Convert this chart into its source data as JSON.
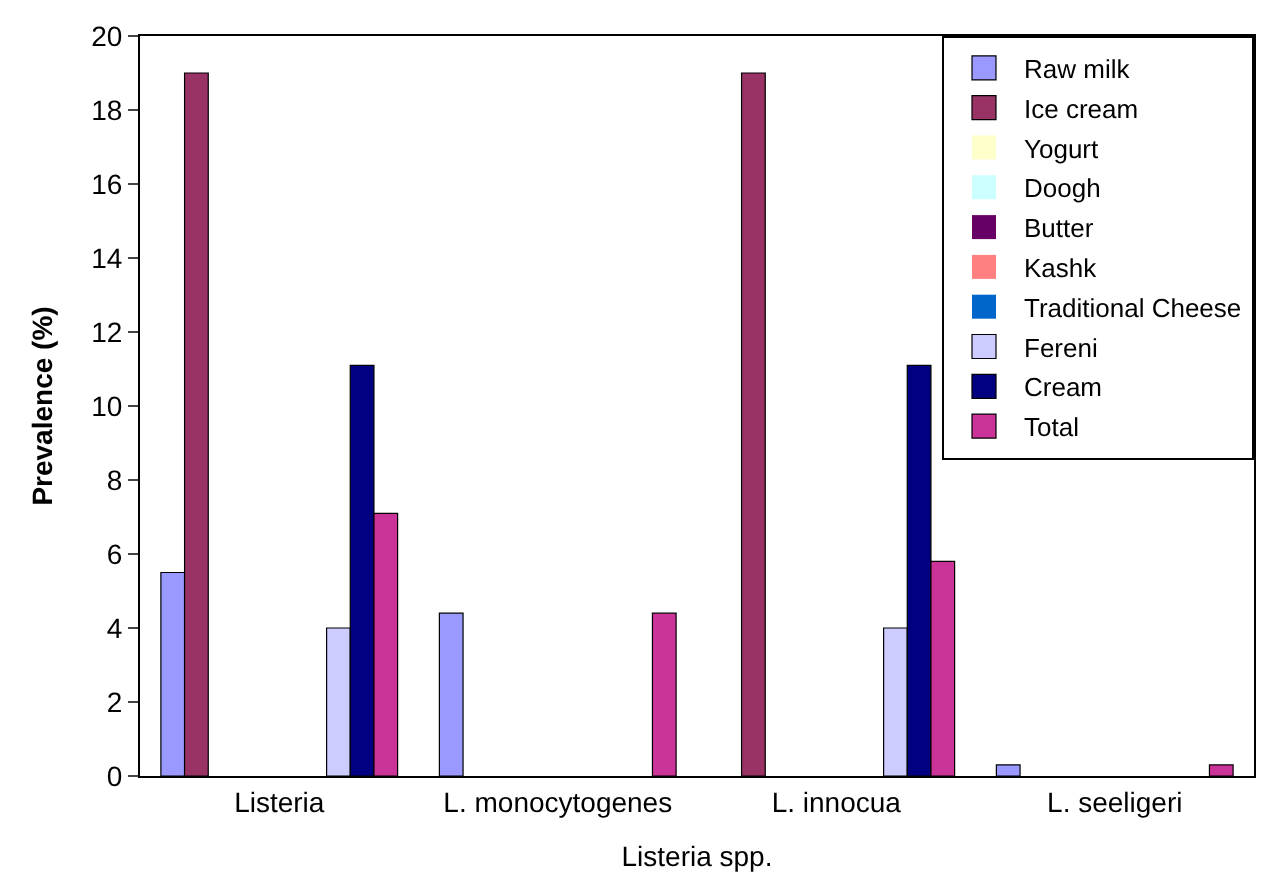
{
  "chart_data": {
    "type": "bar",
    "xlabel": "Listeria spp.",
    "ylabel": "Prevalence (%)",
    "categories": [
      "Listeria",
      "L. monocytogenes",
      "L. innocua",
      "L. seeligeri"
    ],
    "series": [
      {
        "name": "Raw milk",
        "color": "#9999ff",
        "values": [
          5.5,
          4.4,
          0,
          0.3
        ]
      },
      {
        "name": "Ice cream",
        "color": "#993366",
        "values": [
          19,
          0,
          19,
          0
        ]
      },
      {
        "name": "Yogurt",
        "color": "#ffffcc",
        "values": [
          0,
          0,
          0,
          0
        ]
      },
      {
        "name": "Doogh",
        "color": "#ccffff",
        "values": [
          0,
          0,
          0,
          0
        ]
      },
      {
        "name": "Butter",
        "color": "#660066",
        "values": [
          0,
          0,
          0,
          0
        ]
      },
      {
        "name": "Kashk",
        "color": "#ff8080",
        "values": [
          0,
          0,
          0,
          0
        ]
      },
      {
        "name": "Traditional Cheese",
        "color": "#0066cc",
        "values": [
          0,
          0,
          0,
          0
        ]
      },
      {
        "name": "Fereni",
        "color": "#ccccff",
        "values": [
          4,
          0,
          4,
          0
        ]
      },
      {
        "name": "Cream",
        "color": "#000080",
        "values": [
          11.1,
          0,
          11.1,
          0
        ]
      },
      {
        "name": "Total",
        "color": "#cc3399",
        "values": [
          7.1,
          4.4,
          5.8,
          0.3
        ]
      }
    ],
    "ylim": [
      0,
      20
    ],
    "yticks": [
      0,
      2,
      4,
      6,
      8,
      10,
      12,
      14,
      16,
      18,
      20
    ],
    "legend": "top right"
  }
}
